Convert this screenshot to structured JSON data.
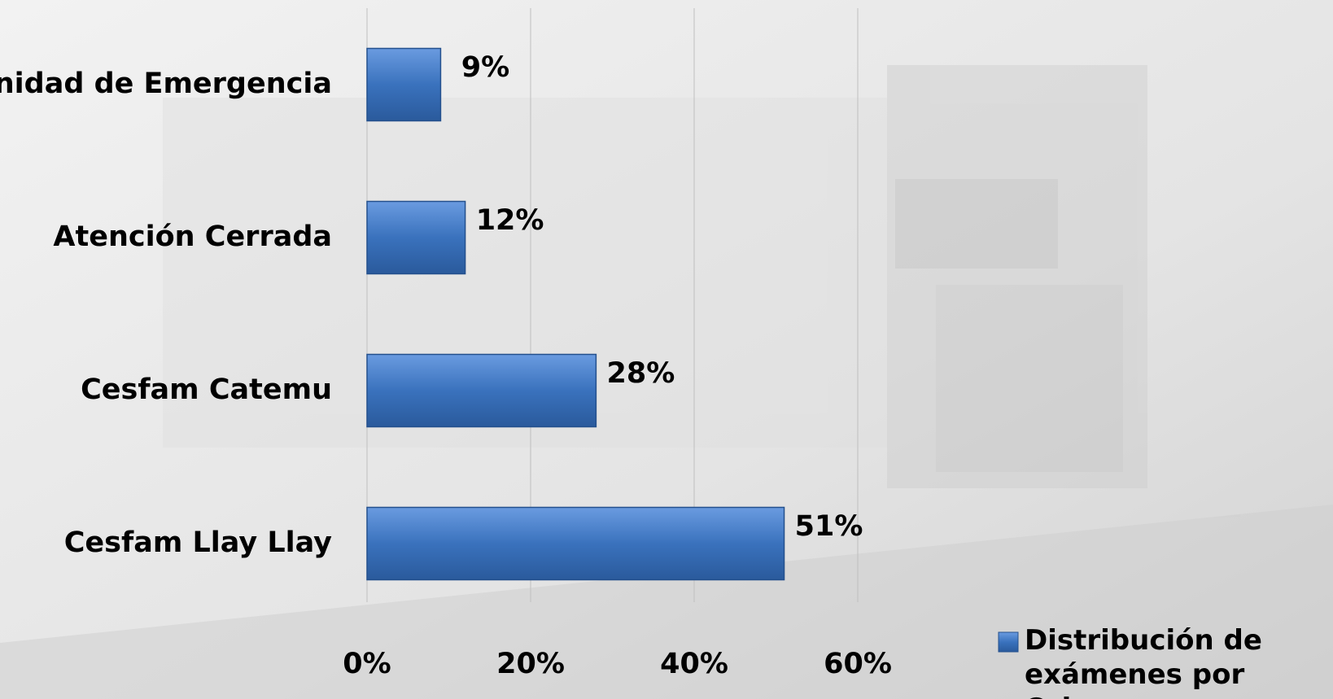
{
  "chart_data": {
    "type": "hbar",
    "categories": [
      "Unidad de Emergencia",
      "Atención Cerrada",
      "Cesfam Catemu",
      "Cesfam Llay Llay"
    ],
    "series": [
      {
        "name": "Distribución de exámenes por Origen",
        "color": "#3a72bd",
        "values": [
          9,
          12,
          28,
          51
        ],
        "value_labels": [
          "9%",
          "12%",
          "28%",
          "51%"
        ]
      }
    ],
    "xlim": [
      0,
      60
    ],
    "xticks": [
      {
        "value": 0,
        "label": "0%"
      },
      {
        "value": 20,
        "label": "20%"
      },
      {
        "value": 40,
        "label": "40%"
      },
      {
        "value": 60,
        "label": "60%"
      }
    ],
    "grid": true,
    "legend": "bottom-right"
  }
}
